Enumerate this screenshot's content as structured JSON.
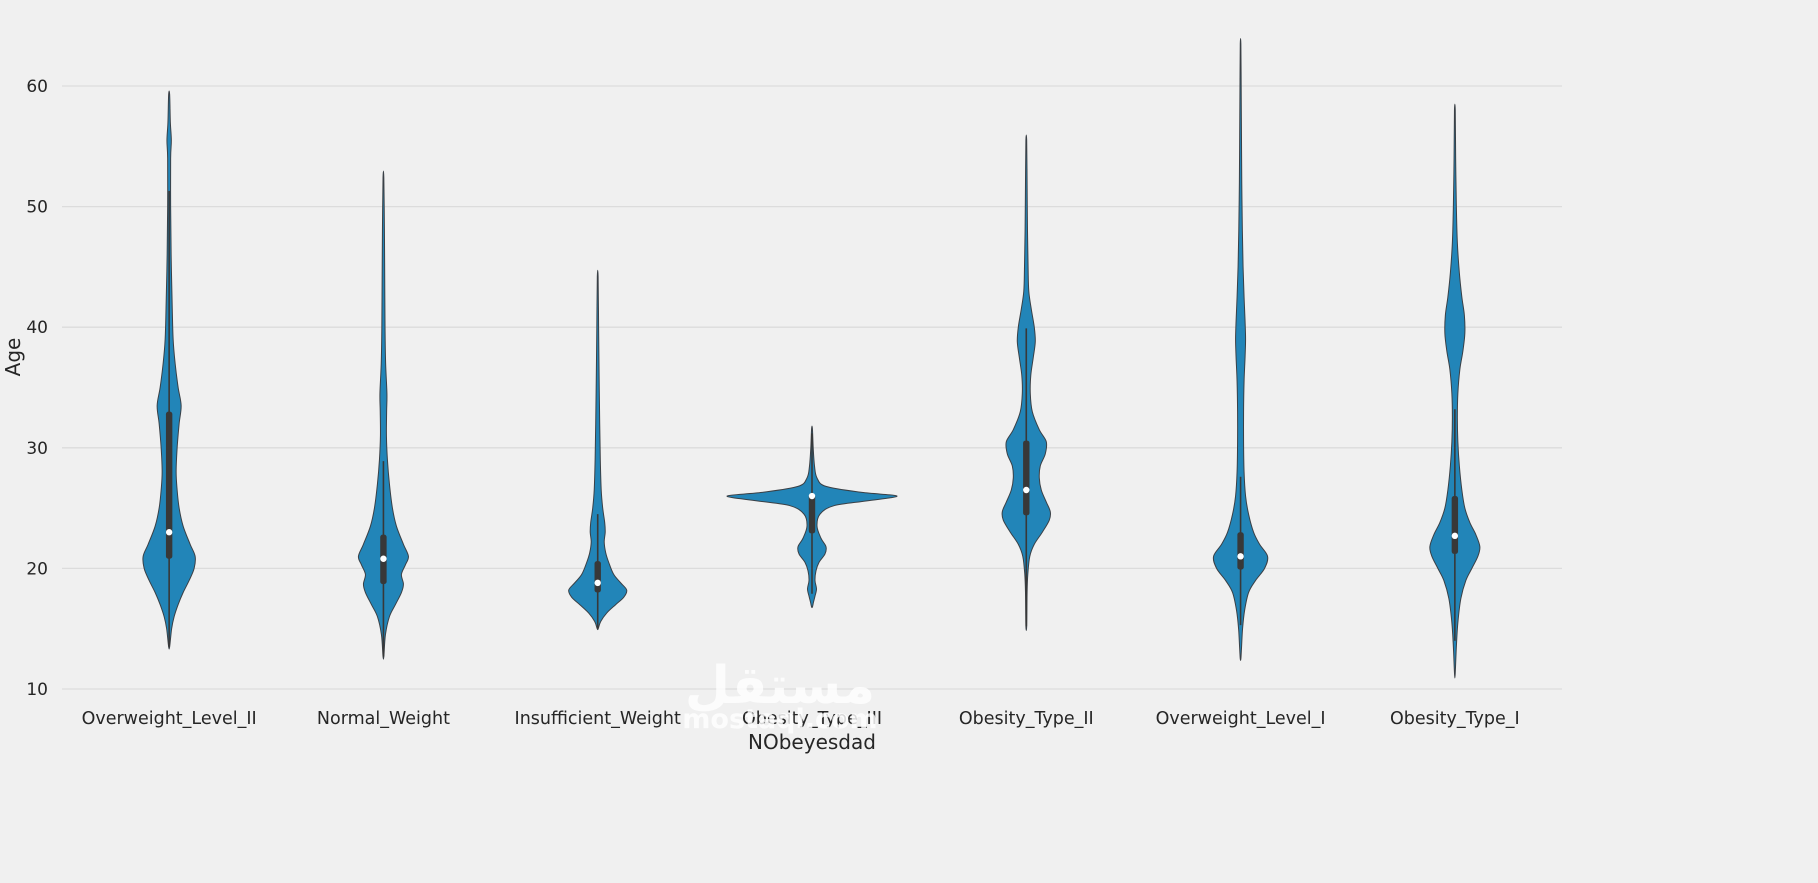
{
  "figure": {
    "background": "#f0f0f0",
    "watermark": {
      "arabic": "مستقل",
      "latin": "mostaql.com"
    }
  },
  "chart_data": {
    "type": "violin",
    "title": "",
    "xlabel": "NObeyesdad",
    "ylabel": "Age",
    "y_ticks": [
      10,
      20,
      30,
      40,
      50,
      60
    ],
    "ylim": [
      8.5,
      65.5
    ],
    "grid": true,
    "legend": "none",
    "style": {
      "violin_fill": "#2285b8",
      "violin_edge": "#3a4046",
      "box_color": "#383838",
      "median_color": "#ffffff",
      "grid_color": "#dcdcdc",
      "text_color": "#262626"
    },
    "categories": [
      "Overweight_Level_II",
      "Normal_Weight",
      "Insufficient_Weight",
      "Obesity_Type_III",
      "Obesity_Type_II",
      "Overweight_Level_I",
      "Obesity_Type_I"
    ],
    "violins": [
      {
        "label": "Overweight_Level_II",
        "data_min": 13.5,
        "data_max": 59.3,
        "q1": 20.8,
        "median": 23.0,
        "q3": 33.0,
        "whisker_low": 13.5,
        "whisker_high": 51.3,
        "profile": [
          [
            59.3,
            0.5
          ],
          [
            57.0,
            1.2
          ],
          [
            55.5,
            2.2
          ],
          [
            54.0,
            1.5
          ],
          [
            50.0,
            1.5
          ],
          [
            46.0,
            2.0
          ],
          [
            42.0,
            3.0
          ],
          [
            39.0,
            4.0
          ],
          [
            37.0,
            6.0
          ],
          [
            35.0,
            9.0
          ],
          [
            33.5,
            12.0
          ],
          [
            32.0,
            10.0
          ],
          [
            30.0,
            8.0
          ],
          [
            28.0,
            7.0
          ],
          [
            26.5,
            8.0
          ],
          [
            25.0,
            10.0
          ],
          [
            23.5,
            14.0
          ],
          [
            22.0,
            21.0
          ],
          [
            21.0,
            26.0
          ],
          [
            20.0,
            25.0
          ],
          [
            19.0,
            20.0
          ],
          [
            18.0,
            14.0
          ],
          [
            17.0,
            9.0
          ],
          [
            16.0,
            5.0
          ],
          [
            15.0,
            2.5
          ],
          [
            13.5,
            0.5
          ]
        ]
      },
      {
        "label": "Normal_Weight",
        "data_min": 12.7,
        "data_max": 52.4,
        "q1": 18.7,
        "median": 20.8,
        "q3": 22.8,
        "whisker_low": 12.7,
        "whisker_high": 28.9,
        "profile": [
          [
            52.4,
            0.4
          ],
          [
            48.0,
            1.0
          ],
          [
            44.0,
            1.3
          ],
          [
            40.0,
            1.6
          ],
          [
            37.0,
            2.2
          ],
          [
            34.5,
            3.5
          ],
          [
            33.0,
            3.2
          ],
          [
            31.0,
            3.0
          ],
          [
            29.0,
            4.0
          ],
          [
            27.0,
            6.0
          ],
          [
            25.0,
            9.0
          ],
          [
            23.5,
            13.0
          ],
          [
            22.0,
            20.0
          ],
          [
            21.0,
            25.0
          ],
          [
            20.3,
            22.0
          ],
          [
            19.5,
            18.0
          ],
          [
            18.7,
            20.0
          ],
          [
            18.0,
            18.0
          ],
          [
            17.0,
            12.0
          ],
          [
            16.0,
            6.0
          ],
          [
            14.5,
            2.0
          ],
          [
            12.7,
            0.4
          ]
        ]
      },
      {
        "label": "Insufficient_Weight",
        "data_min": 15.0,
        "data_max": 44.2,
        "q1": 18.0,
        "median": 18.8,
        "q3": 20.6,
        "whisker_low": 15.0,
        "whisker_high": 24.5,
        "profile": [
          [
            44.2,
            0.4
          ],
          [
            40.0,
            0.9
          ],
          [
            36.0,
            1.4
          ],
          [
            32.0,
            2.0
          ],
          [
            29.0,
            2.6
          ],
          [
            26.5,
            3.5
          ],
          [
            25.0,
            5.0
          ],
          [
            23.8,
            7.0
          ],
          [
            23.0,
            7.5
          ],
          [
            22.2,
            6.5
          ],
          [
            21.3,
            8.0
          ],
          [
            20.5,
            11.0
          ],
          [
            19.5,
            16.0
          ],
          [
            18.8,
            23.0
          ],
          [
            18.2,
            29.0
          ],
          [
            17.6,
            26.0
          ],
          [
            17.0,
            18.0
          ],
          [
            16.3,
            9.0
          ],
          [
            15.6,
            3.0
          ],
          [
            15.0,
            0.5
          ]
        ]
      },
      {
        "label": "Obesity_Type_III",
        "data_min": 16.8,
        "data_max": 31.6,
        "q1": 22.9,
        "median": 26.0,
        "q3": 26.2,
        "whisker_low": 17.9,
        "whisker_high": 31.2,
        "profile": [
          [
            31.6,
            0.4
          ],
          [
            30.0,
            1.2
          ],
          [
            28.5,
            2.5
          ],
          [
            27.5,
            5.0
          ],
          [
            26.8,
            14.0
          ],
          [
            26.3,
            50.0
          ],
          [
            26.0,
            85.0
          ],
          [
            25.6,
            55.0
          ],
          [
            25.2,
            22.0
          ],
          [
            24.5,
            8.0
          ],
          [
            23.5,
            5.0
          ],
          [
            22.5,
            9.0
          ],
          [
            21.8,
            14.0
          ],
          [
            21.2,
            13.0
          ],
          [
            20.5,
            7.0
          ],
          [
            19.8,
            4.0
          ],
          [
            19.0,
            3.0
          ],
          [
            18.3,
            4.5
          ],
          [
            17.7,
            3.0
          ],
          [
            17.2,
            1.5
          ],
          [
            16.8,
            0.4
          ]
        ]
      },
      {
        "label": "Obesity_Type_II",
        "data_min": 15.2,
        "data_max": 55.5,
        "q1": 24.4,
        "median": 26.5,
        "q3": 30.6,
        "whisker_low": 15.2,
        "whisker_high": 39.9,
        "profile": [
          [
            55.5,
            0.4
          ],
          [
            52.0,
            0.8
          ],
          [
            48.0,
            1.2
          ],
          [
            45.0,
            1.8
          ],
          [
            43.0,
            2.5
          ],
          [
            41.5,
            5.0
          ],
          [
            40.0,
            8.0
          ],
          [
            38.8,
            9.0
          ],
          [
            37.5,
            7.0
          ],
          [
            36.0,
            4.5
          ],
          [
            34.5,
            4.0
          ],
          [
            33.0,
            6.0
          ],
          [
            31.5,
            13.0
          ],
          [
            30.5,
            20.0
          ],
          [
            29.5,
            19.0
          ],
          [
            28.5,
            14.0
          ],
          [
            27.5,
            13.0
          ],
          [
            26.5,
            15.0
          ],
          [
            25.5,
            20.0
          ],
          [
            24.7,
            24.0
          ],
          [
            24.0,
            23.0
          ],
          [
            23.0,
            16.0
          ],
          [
            22.0,
            8.0
          ],
          [
            21.0,
            3.5
          ],
          [
            19.5,
            1.5
          ],
          [
            18.0,
            0.8
          ],
          [
            15.2,
            0.4
          ]
        ]
      },
      {
        "label": "Overweight_Level_I",
        "data_min": 12.5,
        "data_max": 63.5,
        "q1": 19.9,
        "median": 21.0,
        "q3": 23.0,
        "whisker_low": 15.3,
        "whisker_high": 27.6,
        "profile": [
          [
            63.5,
            0.3
          ],
          [
            60.0,
            0.6
          ],
          [
            56.0,
            0.9
          ],
          [
            52.0,
            1.2
          ],
          [
            48.0,
            1.8
          ],
          [
            45.0,
            2.5
          ],
          [
            42.5,
            3.5
          ],
          [
            40.5,
            4.5
          ],
          [
            39.0,
            5.0
          ],
          [
            37.5,
            4.5
          ],
          [
            35.5,
            3.5
          ],
          [
            33.0,
            3.0
          ],
          [
            30.5,
            3.0
          ],
          [
            28.0,
            3.5
          ],
          [
            26.0,
            5.0
          ],
          [
            24.5,
            8.0
          ],
          [
            23.0,
            13.0
          ],
          [
            22.0,
            19.0
          ],
          [
            21.0,
            27.0
          ],
          [
            20.0,
            24.0
          ],
          [
            19.0,
            15.0
          ],
          [
            18.0,
            8.0
          ],
          [
            16.5,
            4.0
          ],
          [
            15.0,
            2.0
          ],
          [
            13.5,
            1.0
          ],
          [
            12.5,
            0.3
          ]
        ]
      },
      {
        "label": "Obesity_Type_I",
        "data_min": 11.2,
        "data_max": 58.0,
        "q1": 21.2,
        "median": 22.7,
        "q3": 26.0,
        "whisker_low": 14.0,
        "whisker_high": 33.2,
        "profile": [
          [
            58.0,
            0.4
          ],
          [
            54.0,
            0.8
          ],
          [
            50.0,
            1.5
          ],
          [
            47.0,
            2.5
          ],
          [
            44.5,
            4.5
          ],
          [
            42.5,
            7.0
          ],
          [
            41.0,
            9.5
          ],
          [
            39.5,
            10.0
          ],
          [
            38.0,
            8.0
          ],
          [
            36.5,
            5.0
          ],
          [
            34.5,
            3.0
          ],
          [
            32.5,
            2.5
          ],
          [
            30.5,
            3.0
          ],
          [
            28.5,
            4.5
          ],
          [
            26.5,
            7.0
          ],
          [
            25.0,
            10.0
          ],
          [
            23.8,
            15.0
          ],
          [
            22.8,
            21.0
          ],
          [
            21.8,
            25.0
          ],
          [
            21.0,
            23.0
          ],
          [
            20.0,
            17.0
          ],
          [
            19.0,
            11.0
          ],
          [
            17.5,
            6.0
          ],
          [
            15.5,
            3.0
          ],
          [
            13.5,
            1.5
          ],
          [
            11.2,
            0.3
          ]
        ]
      }
    ]
  }
}
